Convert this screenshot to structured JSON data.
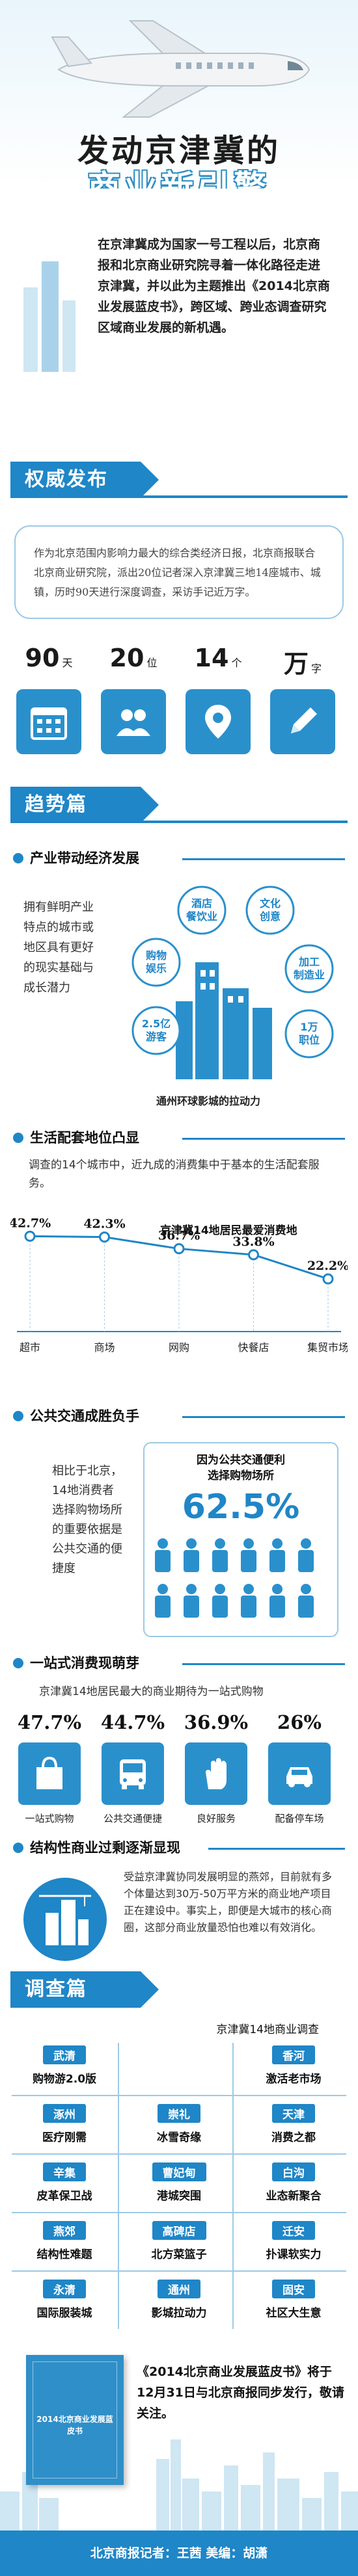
{
  "hero": {
    "title_line1": "发动京津冀的",
    "title_line2": "商业新引擎"
  },
  "intro": "在京津冀成为国家一号工程以后，北京商报和北京商业研究院寻着一体化路径走进京津冀，并以此为主题推出《2014北京商业发展蓝皮书》，跨区域、跨业态调查研究区域商业发展的新机遇。",
  "section1": {
    "title": "权威发布",
    "quote": "作为北京范围内影响力最大的综合类经济日报，北京商报联合北京商业研究院，派出20位记者深入京津冀三地14座城市、城镇，历时90天进行深度调查，采访手记近万字。",
    "stats": [
      {
        "num": "90",
        "unit": "天",
        "icon": "calendar-icon"
      },
      {
        "num": "20",
        "unit": "位",
        "icon": "people-icon"
      },
      {
        "num": "14",
        "unit": "个",
        "icon": "location-pin-icon"
      },
      {
        "num": "万",
        "unit": "字",
        "icon": "pencil-icon"
      }
    ]
  },
  "section2": {
    "title": "趋势篇",
    "sub1": {
      "title": "产业带动经济发展",
      "text": "拥有鲜明产业特点的城市或地区具有更好的现实基础与成长潜力",
      "bubbles": [
        {
          "label": "酒店\n餐饮业"
        },
        {
          "label": "文化\n创意"
        },
        {
          "label": "购物\n娱乐"
        },
        {
          "label": "加工\n制造业"
        },
        {
          "label": "2.5亿\n游客"
        },
        {
          "label": "1万\n职位"
        }
      ],
      "caption": "通州环球影城的拉动力"
    },
    "sub2": {
      "title": "生活配套地位凸显",
      "text": "调查的14个城市中，近九成的消费集中于基本的生活配套服务。",
      "legend": "京津冀14地居民最爱消费地"
    },
    "sub3": {
      "title": "公共交通成胜负手",
      "text": "相比于北京，14地消费者选择购物场所的重要依据是公共交通的便捷度",
      "box_title": "因为公共交通便利\n选择购物场所",
      "box_pct": "62.5%"
    },
    "sub4": {
      "title": "一站式消费现萌芽",
      "text": "京津冀14地居民最大的商业期待为一站式购物",
      "items": [
        {
          "pct": "47.7%",
          "label": "一站式购物",
          "icon": "shopping-bag-icon"
        },
        {
          "pct": "44.7%",
          "label": "公共交通便捷",
          "icon": "bus-icon"
        },
        {
          "pct": "36.9%",
          "label": "良好服务",
          "icon": "hand-icon"
        },
        {
          "pct": "26%",
          "label": "配备停车场",
          "icon": "parking-icon"
        }
      ]
    },
    "sub5": {
      "title": "结构性商业过剩逐渐显现",
      "text": "受益京津冀协同发展明显的燕郊，目前就有多个体量达到30万-50万平方米的商业地产项目正在建设中。事实上，即便是大城市的核心商圈，这部分商业放量恐怕也难以有效消化。"
    }
  },
  "chart_data": {
    "type": "line",
    "categories": [
      "超市",
      "商场",
      "网购",
      "快餐店",
      "集贸市场"
    ],
    "series": [
      {
        "name": "京津冀14地居民最爱消费地",
        "values": [
          42.7,
          42.3,
          36.7,
          33.8,
          22.2
        ]
      }
    ],
    "data_labels": [
      "42.7%",
      "42.3%",
      "36.7%",
      "33.8%",
      "22.2%"
    ]
  },
  "section3": {
    "title": "调查篇",
    "subtitle": "京津冀14地商业调查",
    "cities": [
      {
        "city": "武清",
        "desc": "购物游2.0版"
      },
      {
        "city": "香河",
        "desc": "激活老市场"
      },
      {
        "city": "涿州",
        "desc": "医疗刚需"
      },
      {
        "city": "崇礼",
        "desc": "冰雪奇缘"
      },
      {
        "city": "天津",
        "desc": "消费之都"
      },
      {
        "city": "辛集",
        "desc": "皮革保卫战"
      },
      {
        "city": "曹妃甸",
        "desc": "港城突围"
      },
      {
        "city": "白沟",
        "desc": "业态新聚合"
      },
      {
        "city": "燕郊",
        "desc": "结构性难题"
      },
      {
        "city": "高碑店",
        "desc": "北方菜篮子"
      },
      {
        "city": "迁安",
        "desc": "扑课软实力"
      },
      {
        "city": "永清",
        "desc": "国际服装城"
      },
      {
        "city": "通州",
        "desc": "影城拉动力"
      },
      {
        "city": "固安",
        "desc": "社区大生意"
      }
    ]
  },
  "book": {
    "cover_text": "2014北京商业发展蓝皮书",
    "text": "《2014北京商业发展蓝皮书》将于12月31日与北京商报同步发行，敬请关注。"
  },
  "footer": "北京商报记者：王茜  美编：胡潇"
}
